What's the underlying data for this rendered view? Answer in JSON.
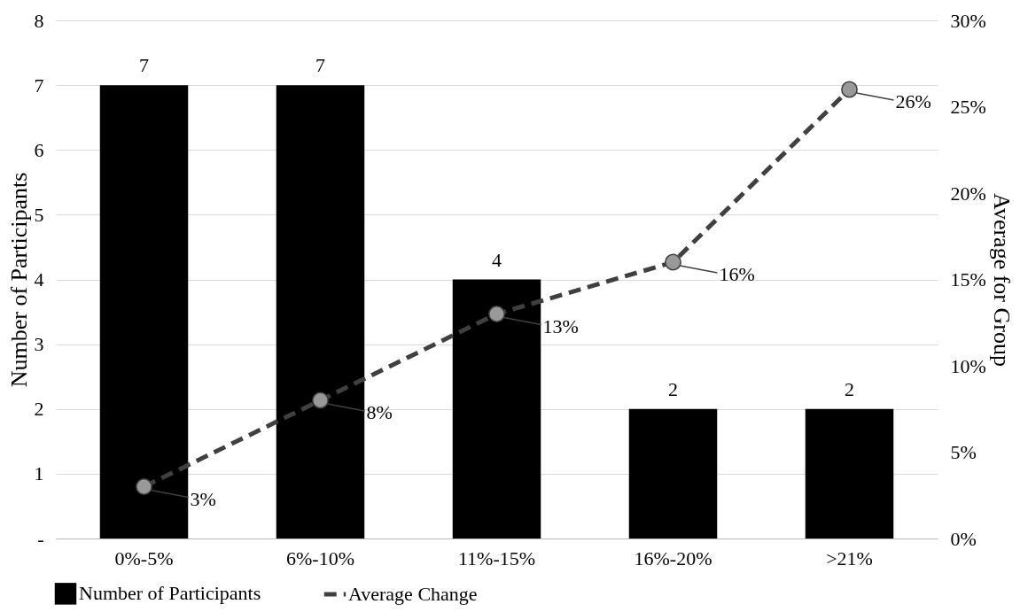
{
  "chart_data": {
    "type": "bar",
    "ylabel": "Number of Participants",
    "y2label": "Average for Group",
    "categories": [
      "0%-5%",
      "6%-10%",
      "11%-15%",
      "16%-20%",
      ">21%"
    ],
    "series": [
      {
        "name": "Number of Participants",
        "color": "#000000",
        "values": [
          7,
          7,
          4,
          2,
          2
        ],
        "data_labels": true
      },
      {
        "type": "line",
        "name": "Average Change",
        "color": "#404040",
        "axis": "y2",
        "values": [
          3,
          8,
          13,
          16,
          26
        ],
        "value_labels": [
          "3%",
          "8%",
          "13%",
          "16%",
          "26%"
        ],
        "marker": "circle",
        "line_style": "dashed"
      }
    ],
    "ylim": [
      0,
      8
    ],
    "yticks": [
      {
        "value": 0,
        "label": "-"
      },
      1,
      2,
      3,
      4,
      5,
      6,
      7,
      8
    ],
    "y2lim": [
      0,
      30
    ],
    "y2ticks": [
      {
        "value": 0,
        "label": "0%"
      },
      {
        "value": 5,
        "label": "5%"
      },
      {
        "value": 10,
        "label": "10%"
      },
      {
        "value": 15,
        "label": "15%"
      },
      {
        "value": 20,
        "label": "20%"
      },
      {
        "value": 25,
        "label": "25%"
      },
      {
        "value": 30,
        "label": "30%"
      }
    ],
    "grid": "y",
    "legend": "bottom"
  }
}
